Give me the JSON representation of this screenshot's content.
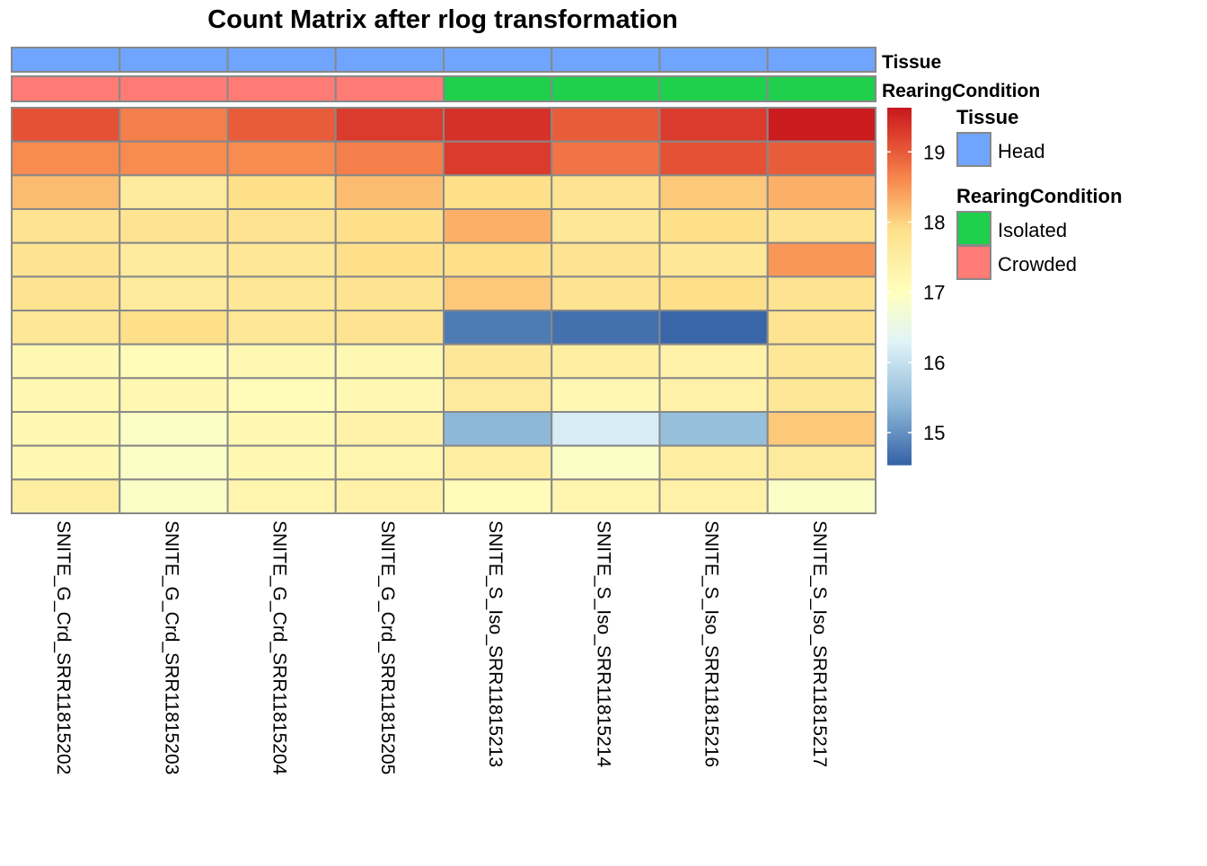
{
  "chart_data": {
    "type": "heatmap",
    "title": "Count Matrix after rlog transformation",
    "columns": [
      "SNITE_G_Crd_SRR11815202",
      "SNITE_G_Crd_SRR11815203",
      "SNITE_G_Crd_SRR11815204",
      "SNITE_G_Crd_SRR11815205",
      "SNITE_S_Iso_SRR11815213",
      "SNITE_S_Iso_SRR11815214",
      "SNITE_S_Iso_SRR11815216",
      "SNITE_S_Iso_SRR11815217"
    ],
    "values": [
      [
        19.1,
        18.7,
        19.0,
        19.3,
        19.4,
        19.0,
        19.3,
        19.6
      ],
      [
        18.6,
        18.6,
        18.6,
        18.7,
        19.3,
        18.8,
        19.1,
        19.0
      ],
      [
        18.2,
        17.6,
        17.9,
        18.2,
        17.9,
        17.8,
        18.1,
        18.3
      ],
      [
        17.8,
        17.8,
        17.8,
        17.9,
        18.3,
        17.7,
        17.9,
        17.8
      ],
      [
        17.8,
        17.6,
        17.7,
        17.9,
        17.9,
        17.8,
        17.7,
        18.5
      ],
      [
        17.8,
        17.6,
        17.7,
        17.8,
        18.1,
        17.8,
        17.9,
        17.8
      ],
      [
        17.7,
        17.9,
        17.7,
        17.8,
        14.8,
        14.7,
        14.6,
        17.8
      ],
      [
        17.2,
        17.1,
        17.2,
        17.2,
        17.7,
        17.5,
        17.4,
        17.7
      ],
      [
        17.2,
        17.2,
        17.1,
        17.2,
        17.6,
        17.2,
        17.4,
        17.7
      ],
      [
        17.2,
        16.9,
        17.2,
        17.4,
        15.4,
        16.2,
        15.5,
        18.1
      ],
      [
        17.2,
        16.9,
        17.2,
        17.3,
        17.5,
        16.9,
        17.5,
        17.6
      ],
      [
        17.5,
        16.9,
        17.3,
        17.4,
        17.1,
        17.3,
        17.4,
        16.9
      ]
    ],
    "color_range": [
      14.54,
      19.63
    ],
    "colorbar_ticks": [
      19,
      18,
      17,
      16,
      15
    ],
    "annotations": [
      {
        "name": "Tissue",
        "values": [
          "Head",
          "Head",
          "Head",
          "Head",
          "Head",
          "Head",
          "Head",
          "Head"
        ]
      },
      {
        "name": "RearingCondition",
        "values": [
          "Crowded",
          "Crowded",
          "Crowded",
          "Crowded",
          "Isolated",
          "Isolated",
          "Isolated",
          "Isolated"
        ]
      }
    ],
    "legend": [
      {
        "title": "Tissue",
        "items": [
          {
            "label": "Head",
            "color": "#6FA5FF"
          }
        ]
      },
      {
        "title": "RearingCondition",
        "items": [
          {
            "label": "Isolated",
            "color": "#1ED04C"
          },
          {
            "label": "Crowded",
            "color": "#FF7B75"
          }
        ]
      }
    ],
    "palette": [
      "#3360A5",
      "#8DB8D8",
      "#E0F3F8",
      "#FFFFBF",
      "#FEE08B",
      "#F88B4F",
      "#E04530",
      "#C8191E"
    ]
  }
}
